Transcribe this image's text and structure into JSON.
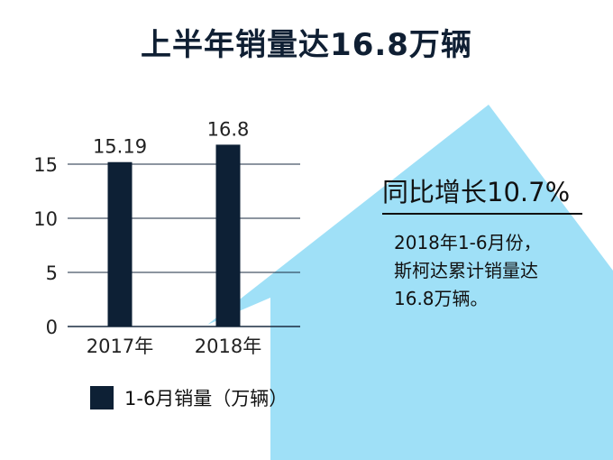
{
  "title": "上半年销量达16.8万辆",
  "callout": {
    "headline": "同比增长10.7%",
    "lines": [
      "2018年1-6月份，",
      "斯柯达累计销量达",
      "16.8万辆。"
    ]
  },
  "colors": {
    "bar": "#0d2035",
    "arrow": "#9fe0f7",
    "grid": "#1a2b40",
    "text": "#111111"
  },
  "chart_data": {
    "type": "bar",
    "categories": [
      "2017年",
      "2018年"
    ],
    "series": [
      {
        "name": "1-6月销量（万辆）",
        "values": [
          15.19,
          16.8
        ]
      }
    ],
    "data_labels": [
      "15.19",
      "16.8"
    ],
    "yticks": [
      0,
      5,
      10,
      15
    ],
    "ylim": [
      0,
      15
    ],
    "grid": true,
    "legend": "bottom-left"
  }
}
